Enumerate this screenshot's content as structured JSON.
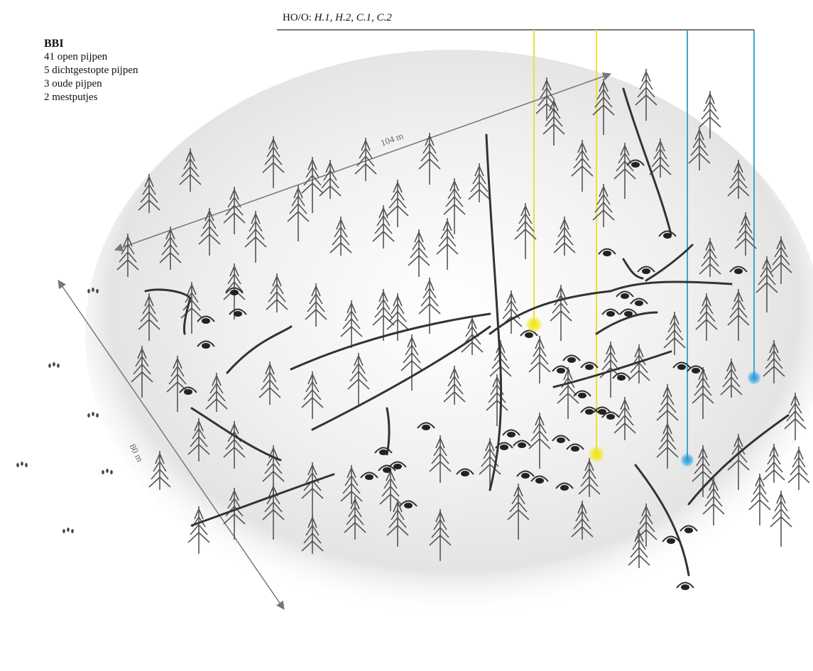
{
  "legend": {
    "title": "BBI",
    "items": [
      "41 open pijpen",
      "5 dichtgestopte pijpen",
      "3 oude pijpen",
      "2 mestputjes"
    ]
  },
  "header": {
    "prefix": "HO/O:",
    "codes": "H.1, H.2, C.1, C.2"
  },
  "dimensions": {
    "length_label": "104 m",
    "width_label": "80 m"
  },
  "colors": {
    "yellow_marker": "#f2e600",
    "blue_marker": "#1e9be0",
    "blue_line": "#3aa8c8",
    "yellow_line": "#e8e23a",
    "arrow": "#777777",
    "tree": "#555555",
    "path": "#333333"
  }
}
